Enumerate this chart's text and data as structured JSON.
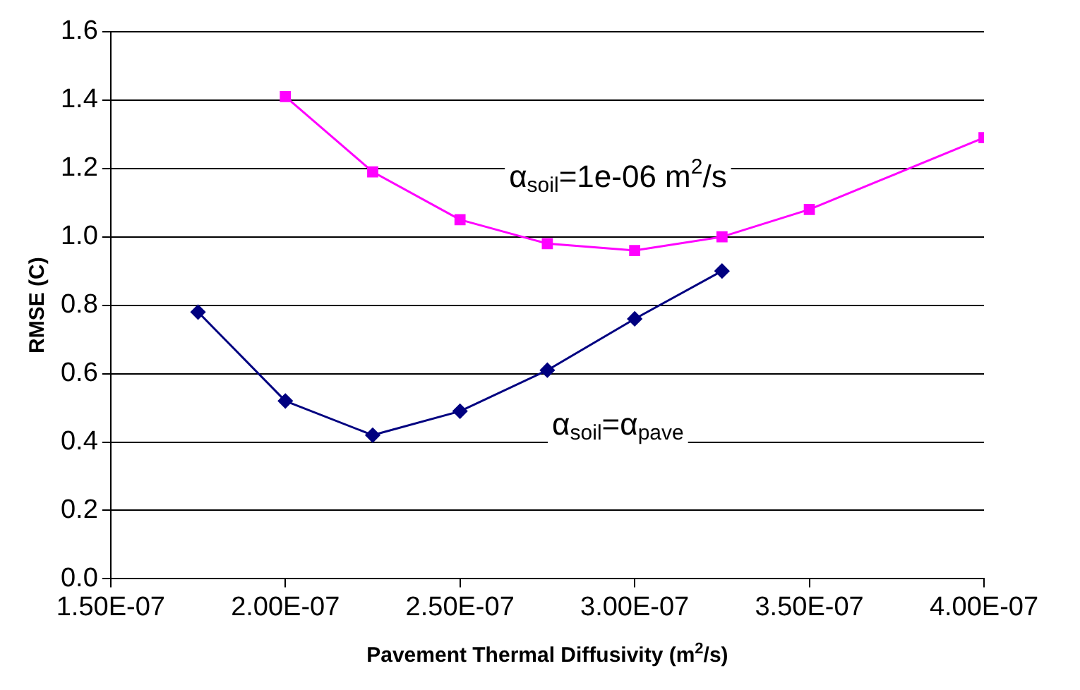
{
  "chart_data": {
    "type": "line",
    "xlabel": "Pavement Thermal Diffusivity (m$^{2}$/s)",
    "ylabel": "RMSE (C)",
    "annotations": [
      "α$_{soil}$=1e-06 m$^{2}$/s",
      "α$_{soil}$=α$_{pave}$"
    ],
    "series": [
      {
        "color": "#ff00ff",
        "marker": "square",
        "x": [
          2e-07,
          2.25e-07,
          2.5e-07,
          2.75e-07,
          3e-07,
          3.25e-07,
          3.5e-07,
          4e-07
        ],
        "values": [
          1.41,
          1.19,
          1.05,
          0.98,
          0.96,
          1.0,
          1.08,
          1.29
        ]
      },
      {
        "color": "#000080",
        "marker": "diamond",
        "x": [
          1.75e-07,
          2e-07,
          2.25e-07,
          2.5e-07,
          2.75e-07,
          3e-07,
          3.25e-07
        ],
        "values": [
          0.78,
          0.52,
          0.42,
          0.49,
          0.61,
          0.76,
          0.9
        ]
      }
    ],
    "xlim": [
      1.5e-07,
      4e-07
    ],
    "xticks": [
      {
        "value": 1.5e-07,
        "label": "1.50E-07"
      },
      {
        "value": 2e-07,
        "label": "2.00E-07"
      },
      {
        "value": 2.5e-07,
        "label": "2.50E-07"
      },
      {
        "value": 3e-07,
        "label": "3.00E-07"
      },
      {
        "value": 3.5e-07,
        "label": "3.50E-07"
      },
      {
        "value": 4e-07,
        "label": "4.00E-07"
      }
    ],
    "ylim": [
      0,
      1.6
    ],
    "yticks": [
      {
        "value": 0,
        "label": "0.0"
      },
      {
        "value": 0.2,
        "label": "0.2"
      },
      {
        "value": 0.4,
        "label": "0.4"
      },
      {
        "value": 0.6,
        "label": "0.6"
      },
      {
        "value": 0.8,
        "label": "0.8"
      },
      {
        "value": 1.0,
        "label": "1.0"
      },
      {
        "value": 1.2,
        "label": "1.2"
      },
      {
        "value": 1.4,
        "label": "1.4"
      },
      {
        "value": 1.6,
        "label": "1.6"
      }
    ],
    "grid": "y",
    "legend": false,
    "line_style": "solid"
  }
}
